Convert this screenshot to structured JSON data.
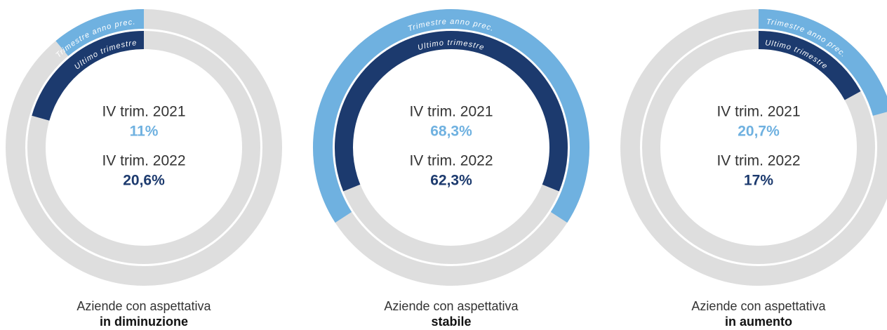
{
  "chart_data": [
    {
      "type": "ring",
      "direction": "counterclockwise",
      "track_color": "#dedede",
      "caption": "Aziende con aspettativa",
      "subcaption": "in diminuzione",
      "series": [
        {
          "name": "Trimestre anno prec.",
          "period": "IV trim. 2021",
          "color": "#6fb1e0",
          "values": [
            11
          ],
          "value_labels": [
            "11%"
          ]
        },
        {
          "name": "Ultimo trimestre",
          "period": "IV trim. 2022",
          "color": "#1c3a6e",
          "values": [
            20.6
          ],
          "value_labels": [
            "20,6%"
          ]
        }
      ]
    },
    {
      "type": "ring",
      "direction": "centered",
      "track_color": "#dedede",
      "caption": "Aziende con aspettativa",
      "subcaption": "stabile",
      "series": [
        {
          "name": "Trimestre anno prec.",
          "period": "IV trim. 2021",
          "color": "#6fb1e0",
          "values": [
            68.3
          ],
          "value_labels": [
            "68,3%"
          ]
        },
        {
          "name": "Ultimo trimestre",
          "period": "IV trim. 2022",
          "color": "#1c3a6e",
          "values": [
            62.3
          ],
          "value_labels": [
            "62,3%"
          ]
        }
      ]
    },
    {
      "type": "ring",
      "direction": "clockwise",
      "track_color": "#dedede",
      "caption": "Aziende con aspettativa",
      "subcaption": "in aumento",
      "series": [
        {
          "name": "Trimestre anno prec.",
          "period": "IV trim. 2021",
          "color": "#6fb1e0",
          "values": [
            20.7
          ],
          "value_labels": [
            "20,7%"
          ]
        },
        {
          "name": "Ultimo trimestre",
          "period": "IV trim. 2022",
          "color": "#1c3a6e",
          "values": [
            17
          ],
          "value_labels": [
            "17%"
          ]
        }
      ]
    }
  ]
}
